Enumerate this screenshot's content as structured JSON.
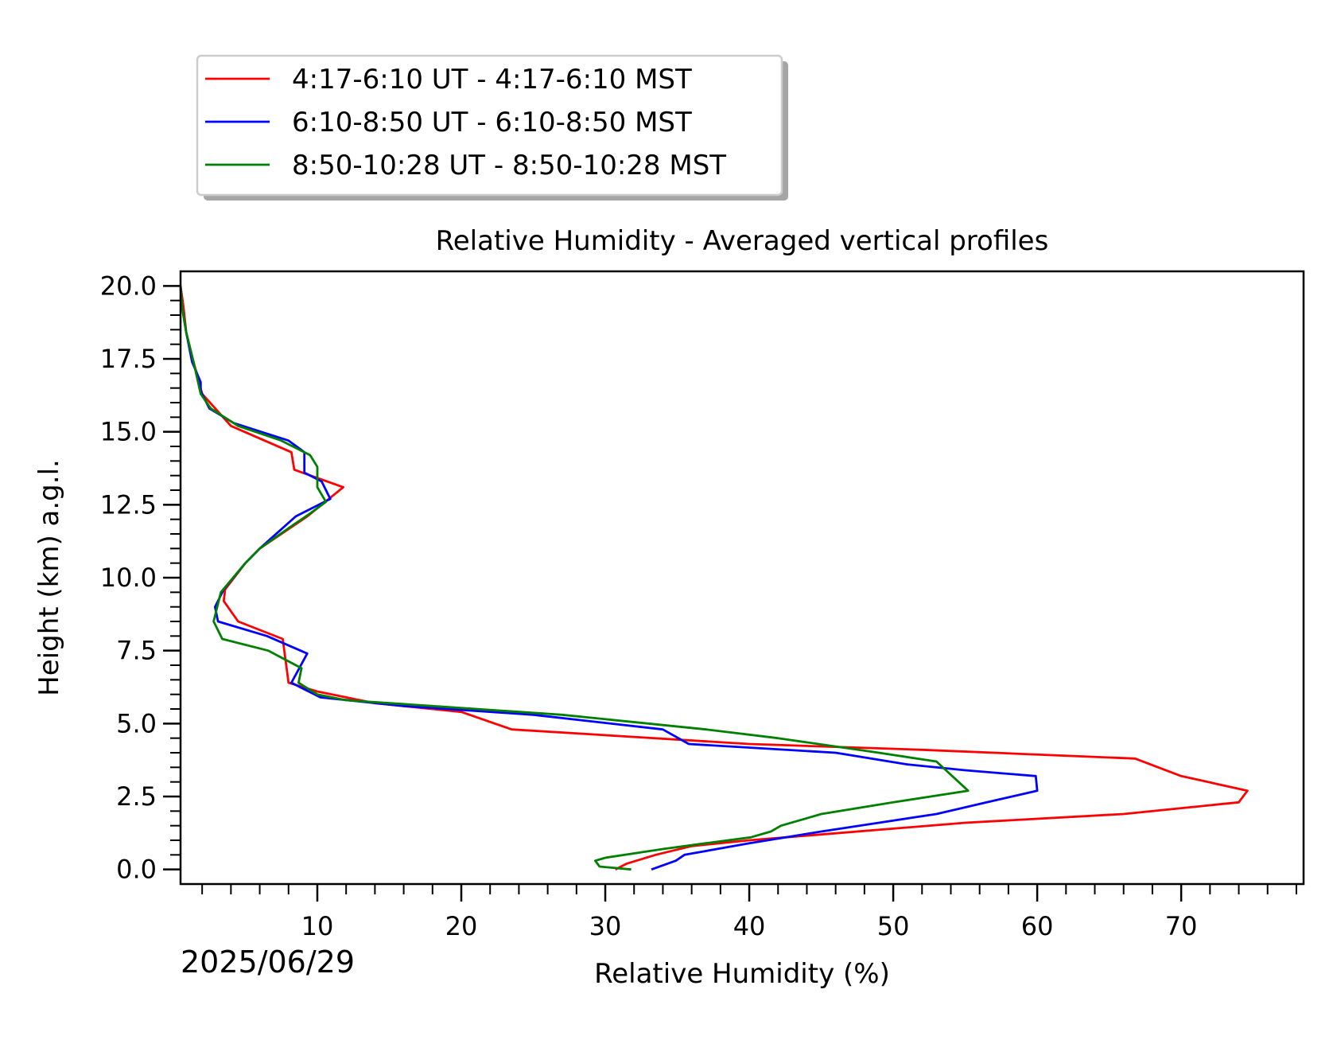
{
  "chart_data": {
    "type": "line",
    "title": "Relative Humidity - Averaged vertical profiles",
    "xlabel": "Relative Humidity (%)",
    "ylabel": "Height (km) a.g.l.",
    "date_label": "2025/06/29",
    "xlim": [
      0.5,
      78.5
    ],
    "ylim": [
      -0.5,
      20.5
    ],
    "x_major_ticks": [
      10,
      20,
      30,
      40,
      50,
      60,
      70
    ],
    "x_minor_step": 2,
    "y_major_ticks": [
      0.0,
      2.5,
      5.0,
      7.5,
      10.0,
      12.5,
      15.0,
      17.5,
      20.0
    ],
    "y_major_tick_labels": [
      "0.0",
      "2.5",
      "5.0",
      "7.5",
      "10.0",
      "12.5",
      "15.0",
      "17.5",
      "20.0"
    ],
    "y_minor_step": 0.5,
    "grid": false,
    "legend_position": "top-left, above plot",
    "series": [
      {
        "name": "4:17-6:10 UT - 4:17-6:10 MST",
        "color": "#ff0000",
        "points": [
          [
            30.7,
            0.0
          ],
          [
            31.5,
            0.2
          ],
          [
            33.5,
            0.5
          ],
          [
            36,
            0.8
          ],
          [
            40,
            1.0
          ],
          [
            45,
            1.2
          ],
          [
            55,
            1.6
          ],
          [
            66,
            1.9
          ],
          [
            74,
            2.3
          ],
          [
            74.6,
            2.7
          ],
          [
            70,
            3.2
          ],
          [
            66.8,
            3.8
          ],
          [
            52,
            4.1
          ],
          [
            40,
            4.3
          ],
          [
            23.5,
            4.8
          ],
          [
            20,
            5.4
          ],
          [
            14,
            5.7
          ],
          [
            10,
            6.1
          ],
          [
            8,
            6.4
          ],
          [
            7.6,
            7.9
          ],
          [
            4.5,
            8.5
          ],
          [
            3.5,
            9.2
          ],
          [
            3.6,
            9.6
          ],
          [
            5,
            10.5
          ],
          [
            6,
            11.0
          ],
          [
            9.3,
            12.1
          ],
          [
            11.8,
            13.1
          ],
          [
            8.4,
            13.7
          ],
          [
            8.2,
            14.3
          ],
          [
            4,
            15.2
          ],
          [
            2,
            16.3
          ],
          [
            1.4,
            17.4
          ],
          [
            0.9,
            18.4
          ],
          [
            0.7,
            19.3
          ],
          [
            0.5,
            20.0
          ]
        ]
      },
      {
        "name": "6:10-8:50 UT - 6:10-8:50 MST",
        "color": "#0000ff",
        "points": [
          [
            33.2,
            0.0
          ],
          [
            34.9,
            0.3
          ],
          [
            35.5,
            0.5
          ],
          [
            40,
            0.9
          ],
          [
            45,
            1.3
          ],
          [
            49,
            1.6
          ],
          [
            53,
            1.9
          ],
          [
            56.5,
            2.3
          ],
          [
            60,
            2.7
          ],
          [
            59.9,
            3.2
          ],
          [
            55,
            3.4
          ],
          [
            51,
            3.6
          ],
          [
            46,
            4.0
          ],
          [
            35.8,
            4.3
          ],
          [
            34,
            4.8
          ],
          [
            25,
            5.3
          ],
          [
            16,
            5.6
          ],
          [
            10.2,
            5.9
          ],
          [
            8.2,
            6.4
          ],
          [
            9.3,
            7.4
          ],
          [
            6.5,
            8.0
          ],
          [
            3.1,
            8.5
          ],
          [
            2.9,
            9.0
          ],
          [
            3.5,
            9.6
          ],
          [
            5,
            10.5
          ],
          [
            6,
            11.0
          ],
          [
            8.5,
            12.1
          ],
          [
            10.9,
            12.7
          ],
          [
            10.3,
            13.3
          ],
          [
            9.1,
            13.6
          ],
          [
            9.1,
            14.3
          ],
          [
            8,
            14.7
          ],
          [
            4.2,
            15.3
          ],
          [
            2.5,
            15.8
          ],
          [
            1.9,
            16.4
          ],
          [
            1.9,
            16.7
          ],
          [
            1.3,
            17.4
          ],
          [
            0.9,
            18.4
          ],
          [
            0.6,
            19.3
          ],
          [
            0.5,
            20.0
          ]
        ]
      },
      {
        "name": "8:50-10:28 UT - 8:50-10:28 MST",
        "color": "#008000",
        "points": [
          [
            31.8,
            0.0
          ],
          [
            29.6,
            0.1
          ],
          [
            29.3,
            0.3
          ],
          [
            30,
            0.4
          ],
          [
            34,
            0.7
          ],
          [
            37,
            0.9
          ],
          [
            40.1,
            1.1
          ],
          [
            41.5,
            1.3
          ],
          [
            42.2,
            1.5
          ],
          [
            45,
            1.9
          ],
          [
            50,
            2.3
          ],
          [
            55.2,
            2.7
          ],
          [
            53,
            3.7
          ],
          [
            49,
            4.0
          ],
          [
            42,
            4.5
          ],
          [
            37,
            4.8
          ],
          [
            27,
            5.3
          ],
          [
            18,
            5.6
          ],
          [
            12,
            5.8
          ],
          [
            10,
            6.0
          ],
          [
            8.7,
            6.4
          ],
          [
            8.9,
            6.9
          ],
          [
            6.6,
            7.5
          ],
          [
            3.4,
            7.9
          ],
          [
            2.8,
            8.5
          ],
          [
            3.3,
            9.5
          ],
          [
            5,
            10.5
          ],
          [
            6,
            11.0
          ],
          [
            8.3,
            11.8
          ],
          [
            9.5,
            12.2
          ],
          [
            10.6,
            12.6
          ],
          [
            10,
            13.1
          ],
          [
            10,
            13.8
          ],
          [
            9.5,
            14.2
          ],
          [
            7.5,
            14.7
          ],
          [
            4.5,
            15.2
          ],
          [
            2.6,
            15.8
          ],
          [
            1.9,
            16.3
          ],
          [
            1.4,
            17.4
          ],
          [
            0.9,
            18.4
          ],
          [
            0.6,
            19.3
          ],
          [
            0.5,
            20.0
          ]
        ]
      }
    ]
  }
}
